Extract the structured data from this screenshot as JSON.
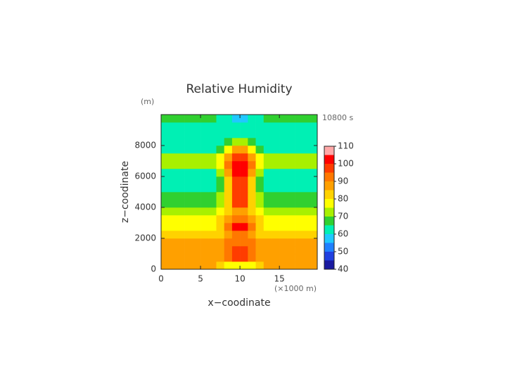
{
  "chart_data": {
    "type": "contour",
    "title": "Relative Humidity",
    "time_label": "10800 s",
    "y_unit": "(m)",
    "x_unit": "(×1000 m)",
    "xlabel": "x−coodinate",
    "ylabel": "z−coodinate",
    "xlim": [
      0,
      19.8
    ],
    "ylim": [
      0,
      10000
    ],
    "xticks": [
      0,
      5,
      10,
      15
    ],
    "yticks": [
      0,
      2000,
      4000,
      6000,
      8000
    ],
    "x": [
      0.5,
      1.5,
      2.5,
      3.5,
      4.5,
      5.5,
      6.5,
      7.5,
      8.5,
      9.5,
      10.5,
      11.5,
      12.5,
      13.5,
      14.5,
      15.5,
      16.5,
      17.5,
      18.5,
      19.5
    ],
    "y": [
      250,
      750,
      1250,
      1750,
      2250,
      2750,
      3250,
      3750,
      4250,
      4750,
      5250,
      5750,
      6250,
      6750,
      7250,
      7750,
      8250,
      8750,
      9250,
      9750
    ],
    "levels": [
      40,
      45,
      50,
      55,
      60,
      65,
      70,
      75,
      80,
      85,
      90,
      95,
      100,
      105,
      110
    ],
    "colors": [
      "#1a1aa0",
      "#2040e0",
      "#2080ff",
      "#20c8ff",
      "#00f0b4",
      "#30d030",
      "#a8f000",
      "#ffff00",
      "#ffd200",
      "#ffa000",
      "#ff7800",
      "#ff3c00",
      "#ff0000",
      "#ffa8a8"
    ],
    "colorbar_ticks": [
      40,
      50,
      60,
      70,
      80,
      90,
      100,
      110
    ],
    "values": [
      [
        85,
        85,
        85,
        85,
        85,
        85,
        85,
        83,
        79,
        75,
        75,
        79,
        83,
        85,
        85,
        85,
        85,
        85,
        85,
        85
      ],
      [
        88,
        88,
        88,
        88,
        88,
        88,
        88,
        89,
        92,
        95,
        95,
        92,
        89,
        88,
        88,
        88,
        88,
        88,
        88,
        88
      ],
      [
        87,
        87,
        87,
        87,
        87,
        87,
        87,
        89,
        93,
        97,
        97,
        93,
        89,
        87,
        87,
        87,
        87,
        87,
        87,
        87
      ],
      [
        87,
        87,
        87,
        87,
        87,
        87,
        87,
        88,
        90,
        92,
        92,
        90,
        88,
        87,
        87,
        87,
        87,
        87,
        87,
        87
      ],
      [
        82,
        82,
        82,
        82,
        82,
        82,
        82,
        84,
        87,
        90,
        90,
        87,
        84,
        82,
        82,
        82,
        82,
        82,
        82,
        82
      ],
      [
        76,
        76,
        76,
        76,
        76,
        76,
        76,
        81,
        90,
        100,
        100,
        90,
        81,
        76,
        76,
        76,
        76,
        76,
        76,
        76
      ],
      [
        78,
        78,
        78,
        78,
        78,
        78,
        78,
        81,
        86,
        92,
        92,
        86,
        81,
        78,
        78,
        78,
        78,
        78,
        78,
        78
      ],
      [
        72,
        72,
        72,
        72,
        72,
        72,
        72,
        75,
        82,
        88,
        88,
        82,
        75,
        72,
        72,
        72,
        72,
        72,
        72,
        72
      ],
      [
        67,
        67,
        67,
        67,
        67,
        67,
        67,
        73,
        84,
        95,
        95,
        84,
        73,
        67,
        67,
        67,
        67,
        67,
        67,
        67
      ],
      [
        65,
        65,
        65,
        65,
        65,
        65,
        65,
        71,
        83,
        95,
        95,
        83,
        71,
        65,
        65,
        65,
        65,
        65,
        65,
        65
      ],
      [
        62,
        62,
        62,
        62,
        62,
        62,
        62,
        69,
        83,
        97,
        97,
        83,
        69,
        62,
        62,
        62,
        62,
        62,
        62,
        62
      ],
      [
        62,
        62,
        62,
        62,
        62,
        62,
        62,
        69,
        84,
        98,
        98,
        84,
        69,
        62,
        62,
        62,
        62,
        62,
        62,
        62
      ],
      [
        64,
        64,
        64,
        64,
        64,
        64,
        64,
        71,
        86,
        100,
        100,
        86,
        71,
        64,
        64,
        64,
        64,
        64,
        64,
        64
      ],
      [
        70,
        70,
        70,
        70,
        70,
        70,
        70,
        77,
        90,
        103,
        103,
        90,
        77,
        70,
        70,
        70,
        70,
        70,
        70,
        70
      ],
      [
        70,
        70,
        70,
        70,
        70,
        70,
        70,
        75,
        86,
        96,
        96,
        86,
        75,
        70,
        70,
        70,
        70,
        70,
        70,
        70
      ],
      [
        64,
        64,
        64,
        64,
        64,
        64,
        64,
        68,
        77,
        85,
        85,
        77,
        68,
        64,
        64,
        64,
        64,
        64,
        64,
        64
      ],
      [
        62,
        62,
        62,
        62,
        62,
        62,
        62,
        64,
        68,
        72,
        72,
        68,
        64,
        62,
        62,
        62,
        62,
        62,
        62,
        62
      ],
      [
        62,
        62,
        62,
        62,
        62,
        62,
        62,
        62,
        62,
        62,
        62,
        62,
        62,
        62,
        62,
        62,
        62,
        62,
        62,
        62
      ],
      [
        62,
        62,
        62,
        62,
        62,
        62,
        62,
        62,
        62,
        62,
        62,
        62,
        62,
        62,
        62,
        62,
        62,
        62,
        62,
        62
      ],
      [
        65,
        65,
        65,
        65,
        65,
        65,
        65,
        64,
        61,
        58,
        58,
        61,
        64,
        65,
        65,
        65,
        65,
        65,
        65,
        65
      ]
    ]
  }
}
